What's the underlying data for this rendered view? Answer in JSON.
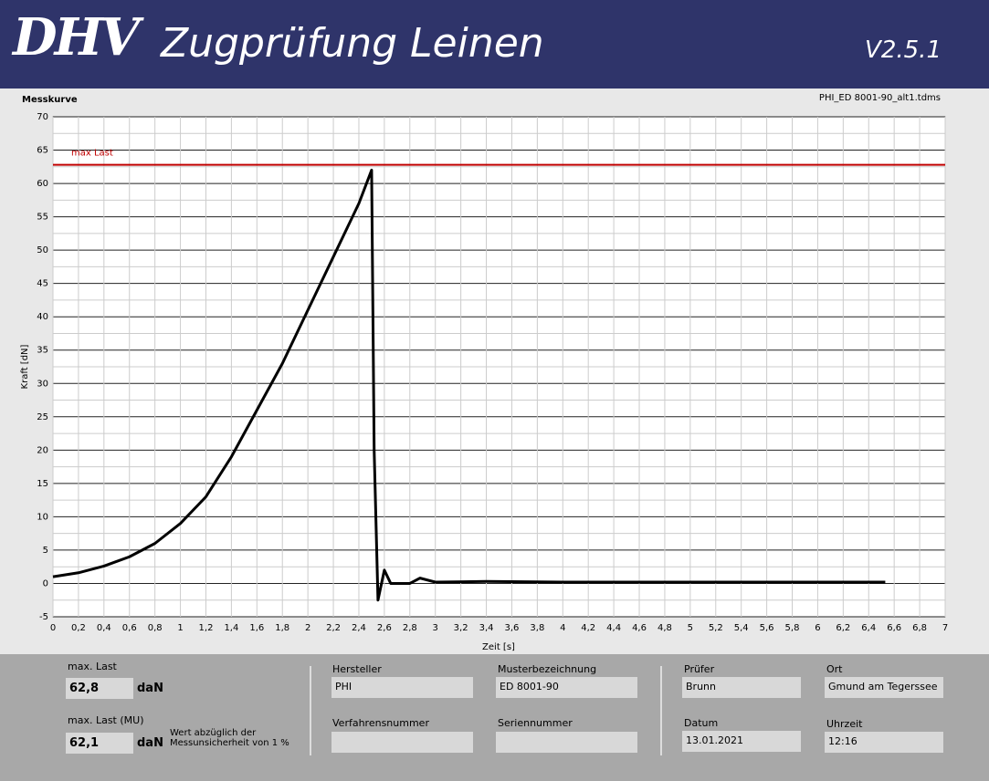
{
  "header": {
    "logo": "DHV",
    "title": "Zugprüfung Leinen",
    "version": "V2.5.1"
  },
  "chart_data": {
    "type": "line",
    "title": "Messkurve",
    "file": "PHI_ED 8001-90_alt1.tdms",
    "x_label": "Zeit [s]",
    "y_label": "Kraft [dN]",
    "xlim": [
      0,
      7
    ],
    "ylim": [
      -5,
      70
    ],
    "xticks": [
      0,
      {
        "value": 0.2,
        "label": "0,2"
      },
      {
        "value": 0.4,
        "label": "0,4"
      },
      {
        "value": 0.6,
        "label": "0,6"
      },
      {
        "value": 0.8,
        "label": "0,8"
      },
      1,
      {
        "value": 1.2,
        "label": "1,2"
      },
      {
        "value": 1.4,
        "label": "1,4"
      },
      {
        "value": 1.6,
        "label": "1,6"
      },
      {
        "value": 1.8,
        "label": "1,8"
      },
      2,
      {
        "value": 2.2,
        "label": "2,2"
      },
      {
        "value": 2.4,
        "label": "2,4"
      },
      {
        "value": 2.6,
        "label": "2,6"
      },
      {
        "value": 2.8,
        "label": "2,8"
      },
      3,
      {
        "value": 3.2,
        "label": "3,2"
      },
      {
        "value": 3.4,
        "label": "3,4"
      },
      {
        "value": 3.6,
        "label": "3,6"
      },
      {
        "value": 3.8,
        "label": "3,8"
      },
      4,
      {
        "value": 4.2,
        "label": "4,2"
      },
      {
        "value": 4.4,
        "label": "4,4"
      },
      {
        "value": 4.6,
        "label": "4,6"
      },
      {
        "value": 4.8,
        "label": "4,8"
      },
      5,
      {
        "value": 5.2,
        "label": "5,2"
      },
      {
        "value": 5.4,
        "label": "5,4"
      },
      {
        "value": 5.6,
        "label": "5,6"
      },
      {
        "value": 5.8,
        "label": "5,8"
      },
      6,
      {
        "value": 6.2,
        "label": "6,2"
      },
      {
        "value": 6.4,
        "label": "6,4"
      },
      {
        "value": 6.6,
        "label": "6,6"
      },
      {
        "value": 6.8,
        "label": "6,8"
      },
      7
    ],
    "yticks": [
      -5,
      0,
      5,
      10,
      15,
      20,
      25,
      30,
      35,
      40,
      45,
      50,
      55,
      60,
      65,
      70
    ],
    "grid": true,
    "x": [
      0,
      0.2,
      0.4,
      0.6,
      0.8,
      1.0,
      1.2,
      1.4,
      1.6,
      1.8,
      2.0,
      2.2,
      2.4,
      2.5,
      2.52,
      2.55,
      2.6,
      2.65,
      2.8,
      2.88,
      3.0,
      3.4,
      4.0,
      5.0,
      6.0,
      6.53
    ],
    "series": [
      {
        "color": "#000000",
        "values": [
          1,
          1.6,
          2.6,
          4,
          6,
          9,
          13,
          19,
          26,
          33,
          41,
          49,
          57,
          62,
          20,
          -2.5,
          2,
          0,
          0,
          0.8,
          0.2,
          0.3,
          0.2,
          0.2,
          0.2,
          0.2
        ]
      }
    ],
    "annotation": {
      "text": "max Last",
      "value": 62.8,
      "color": "#c00000"
    }
  },
  "fields": {
    "max_last": {
      "label": "max. Last",
      "value": "62,8",
      "unit": "daN"
    },
    "max_last_mu": {
      "label": "max. Last (MU)",
      "value": "62,1",
      "unit": "daN",
      "note": "Wert abzüglich der Messunsicherheit von 1 %"
    },
    "hersteller": {
      "label": "Hersteller",
      "value": "PHI"
    },
    "musterbezeichnung": {
      "label": "Musterbezeichnung",
      "value": "ED 8001-90"
    },
    "verfahrensnummer": {
      "label": "Verfahrensnummer"
    },
    "seriennummer": {
      "label": "Seriennummer"
    },
    "pruefer": {
      "label": "Prüfer",
      "value": "Brunn"
    },
    "ort": {
      "label": "Ort",
      "value": "Gmund am Tegerssee"
    },
    "datum": {
      "label": "Datum",
      "value": "13.01.2021"
    },
    "uhrzeit": {
      "label": "Uhrzeit",
      "value": "12:16"
    }
  }
}
